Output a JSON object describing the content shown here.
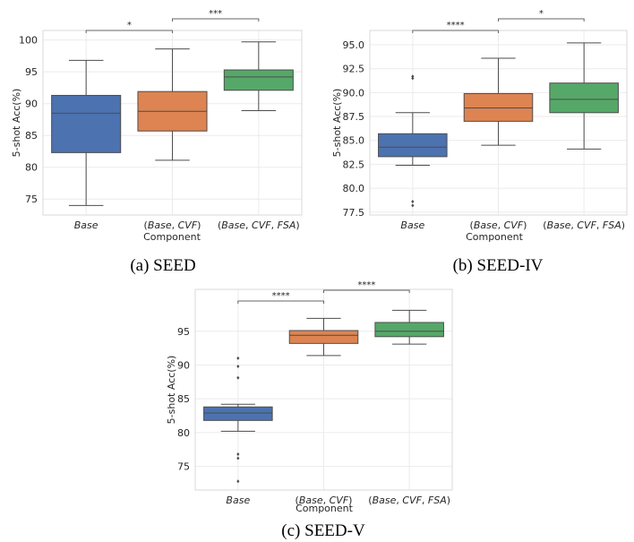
{
  "chart_data": [
    {
      "type": "box",
      "caption": "(a) SEED",
      "xlabel": "Component",
      "ylabel": "5-shot Acc(%)",
      "ylim": [
        72.5,
        101.5
      ],
      "yticks": [
        75,
        80,
        85,
        90,
        95,
        100
      ],
      "ytick_labels": [
        "75",
        "80",
        "85",
        "90",
        "95",
        "100"
      ],
      "grid": true,
      "categories": [
        "Base",
        "(Base, CVF)",
        "(Base, CVF, FSA)"
      ],
      "colors": [
        "#4c72b0",
        "#dd8452",
        "#55a868"
      ],
      "boxes": [
        {
          "whisker_low": 74.0,
          "q1": 82.3,
          "median": 88.5,
          "q3": 91.3,
          "whisker_high": 96.8,
          "outliers": []
        },
        {
          "whisker_low": 81.1,
          "q1": 85.7,
          "median": 88.8,
          "q3": 91.9,
          "whisker_high": 98.6,
          "outliers": []
        },
        {
          "whisker_low": 88.9,
          "q1": 92.1,
          "median": 94.2,
          "q3": 95.3,
          "whisker_high": 99.7,
          "outliers": []
        }
      ],
      "significance": [
        {
          "from": 0,
          "to": 1,
          "label": "*",
          "level": 0
        },
        {
          "from": 1,
          "to": 2,
          "label": "***",
          "level": 1
        }
      ]
    },
    {
      "type": "box",
      "caption": "(b) SEED-IV",
      "xlabel": "Component",
      "ylabel": "5-shot Acc(%)",
      "ylim": [
        77.2,
        96.5
      ],
      "yticks": [
        77.5,
        80.0,
        82.5,
        85.0,
        87.5,
        90.0,
        92.5,
        95.0
      ],
      "ytick_labels": [
        "77.5",
        "80.0",
        "82.5",
        "85.0",
        "87.5",
        "90.0",
        "92.5",
        "95.0"
      ],
      "grid": true,
      "categories": [
        "Base",
        "(Base, CVF)",
        "(Base, CVF, FSA)"
      ],
      "colors": [
        "#4c72b0",
        "#dd8452",
        "#55a868"
      ],
      "boxes": [
        {
          "whisker_low": 82.4,
          "q1": 83.3,
          "median": 84.3,
          "q3": 85.7,
          "whisker_high": 87.9,
          "outliers": [
            91.5,
            91.7,
            78.6,
            78.2
          ]
        },
        {
          "whisker_low": 84.5,
          "q1": 87.0,
          "median": 88.4,
          "q3": 89.9,
          "whisker_high": 93.6,
          "outliers": []
        },
        {
          "whisker_low": 84.1,
          "q1": 87.9,
          "median": 89.3,
          "q3": 91.0,
          "whisker_high": 95.2,
          "outliers": []
        }
      ],
      "significance": [
        {
          "from": 0,
          "to": 1,
          "label": "****",
          "level": 0
        },
        {
          "from": 1,
          "to": 2,
          "label": "*",
          "level": 1
        }
      ]
    },
    {
      "type": "box",
      "caption": "(c) SEED-V",
      "xlabel": "Component",
      "ylabel": "5-shot Acc(%)",
      "ylim": [
        71.5,
        101.2
      ],
      "yticks": [
        75,
        80,
        85,
        90,
        95
      ],
      "ytick_labels": [
        "75",
        "80",
        "85",
        "90",
        "95"
      ],
      "grid": true,
      "categories": [
        "Base",
        "(Base, CVF)",
        "(Base, CVF, FSA)"
      ],
      "colors": [
        "#4c72b0",
        "#dd8452",
        "#55a868"
      ],
      "boxes": [
        {
          "whisker_low": 80.2,
          "q1": 81.8,
          "median": 82.9,
          "q3": 83.8,
          "whisker_high": 84.2,
          "outliers": [
            91.0,
            89.8,
            88.1,
            76.8,
            76.2,
            72.8
          ]
        },
        {
          "whisker_low": 91.4,
          "q1": 93.2,
          "median": 94.4,
          "q3": 95.1,
          "whisker_high": 96.9,
          "outliers": []
        },
        {
          "whisker_low": 93.1,
          "q1": 94.2,
          "median": 95.0,
          "q3": 96.3,
          "whisker_high": 98.1,
          "outliers": []
        }
      ],
      "significance": [
        {
          "from": 0,
          "to": 1,
          "label": "****",
          "level": 0
        },
        {
          "from": 1,
          "to": 2,
          "label": "****",
          "level": 1
        }
      ]
    }
  ]
}
